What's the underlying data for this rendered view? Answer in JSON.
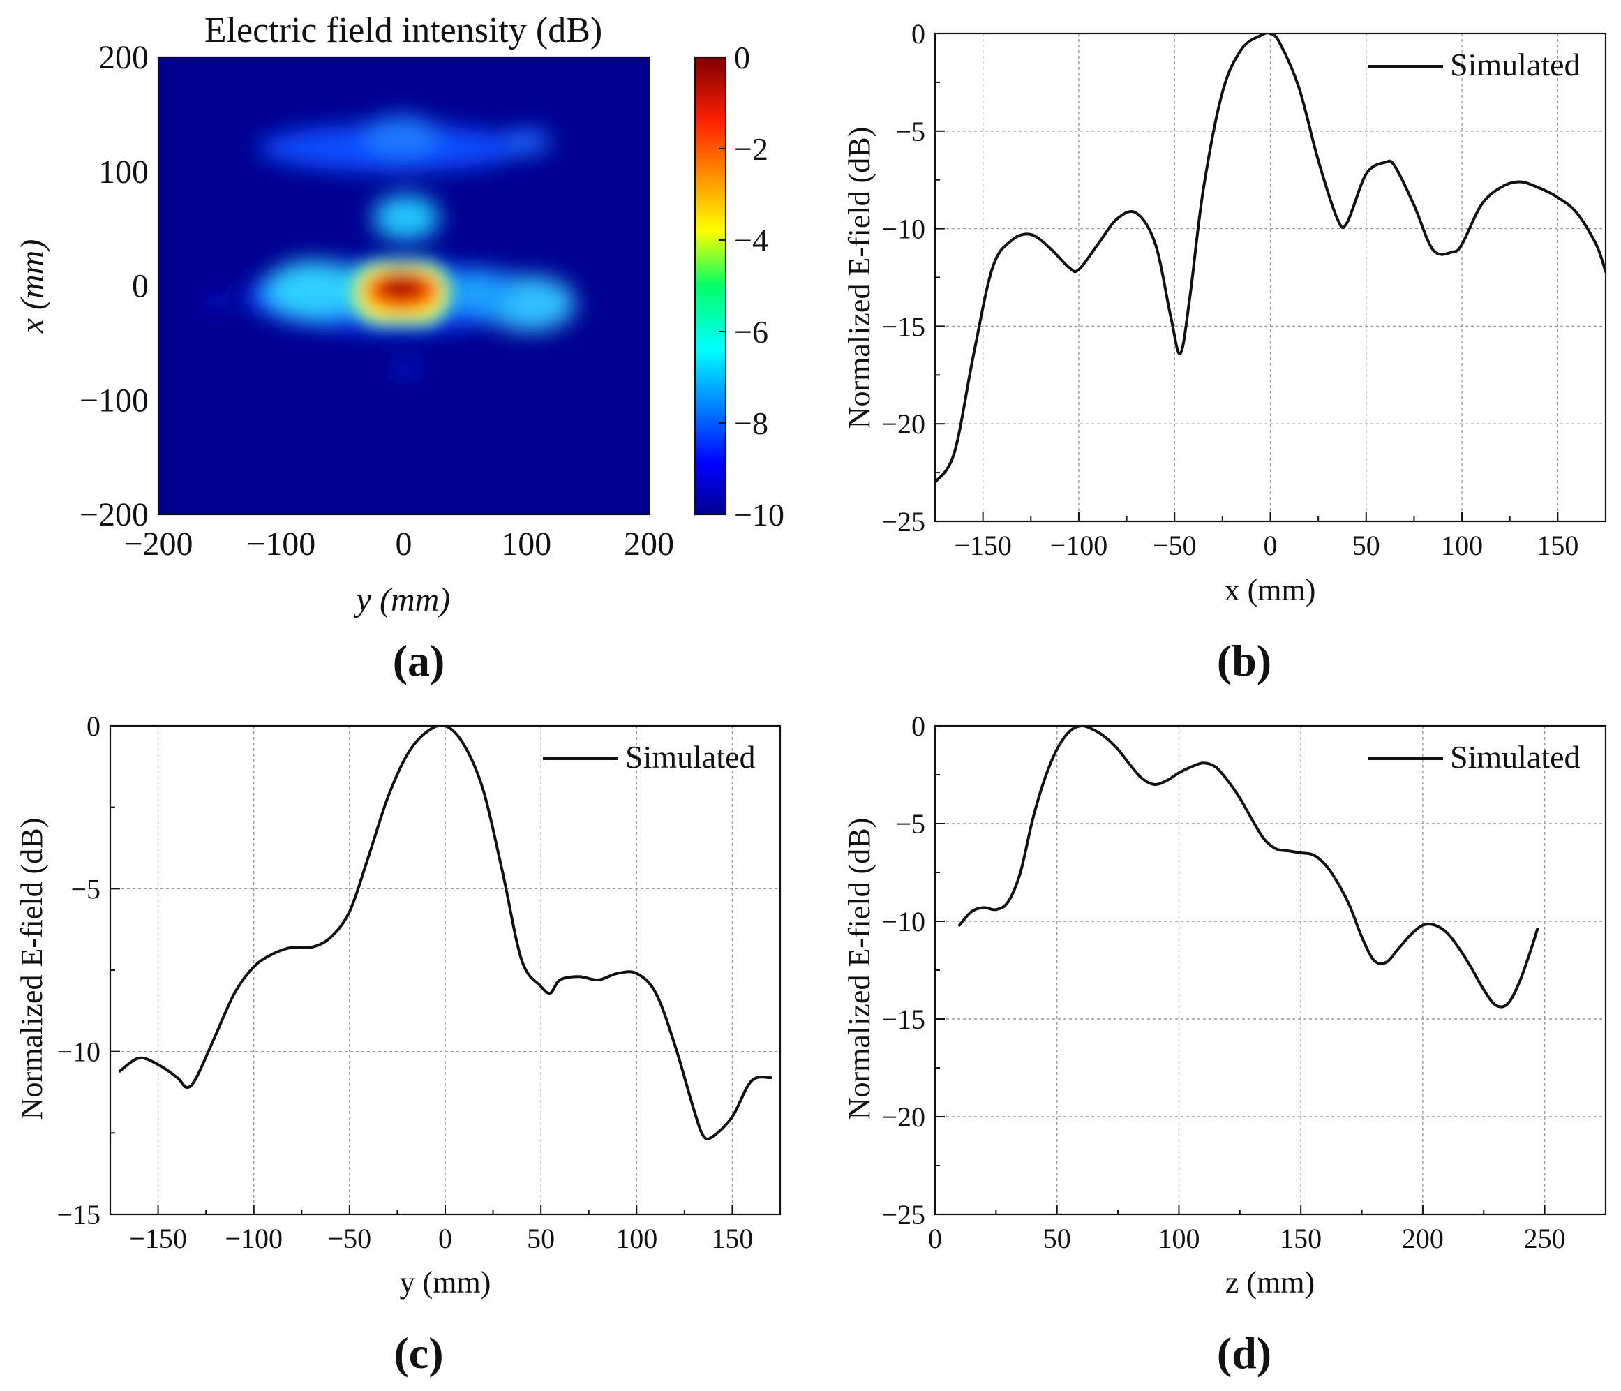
{
  "colors": {
    "line": "#111111",
    "grid": "#9a9a9a",
    "heatmap_background": "#00008f"
  },
  "icons": {
    "legend_swatch": "legend-line-icon",
    "colorbar": "jet-colorbar"
  },
  "chart_data": [
    {
      "panel": "a",
      "panel_label": "(a)",
      "type": "heatmap",
      "title": "Electric field intensity (dB)",
      "xlabel": "y (mm)",
      "ylabel": "x (mm)",
      "xlim": [
        -200,
        200
      ],
      "ylim": [
        -200,
        200
      ],
      "xticks": [
        -200,
        -100,
        0,
        100,
        200
      ],
      "yticks": [
        -200,
        -100,
        0,
        100,
        200
      ],
      "x_tick_labels": [
        "−200",
        "−100",
        "0",
        "100",
        "200"
      ],
      "y_tick_labels": [
        "−200",
        "−100",
        "0",
        "100",
        "200"
      ],
      "colorscale": "jet",
      "color_range": [
        -10,
        0
      ],
      "colorbar_ticks": [
        0,
        -2,
        -4,
        -6,
        -8,
        -10
      ],
      "colorbar_tick_labels": [
        "0",
        "−2",
        "−4",
        "−6",
        "−8",
        "−10"
      ],
      "regions": [
        {
          "y": 0,
          "x": 0,
          "peak_db": 0
        },
        {
          "y": -70,
          "x": -5,
          "peak_db": -6.5
        },
        {
          "y": 90,
          "x": -10,
          "peak_db": -6.5
        },
        {
          "y": -5,
          "x": 60,
          "peak_db": -6.3
        },
        {
          "y": 0,
          "x": 120,
          "peak_db": -7.3
        },
        {
          "y": 0,
          "x": -70,
          "peak_db": -9
        }
      ]
    },
    {
      "panel": "b",
      "panel_label": "(b)",
      "type": "line",
      "xlabel": "x (mm)",
      "ylabel": "Normalized E-field (dB)",
      "xlim": [
        -175,
        175
      ],
      "ylim": [
        -25,
        0
      ],
      "xticks": [
        -150,
        -100,
        -50,
        0,
        50,
        100,
        150
      ],
      "yticks": [
        0,
        -5,
        -10,
        -15,
        -20,
        -25
      ],
      "x_tick_labels": [
        "−150",
        "−100",
        "−50",
        "0",
        "50",
        "100",
        "150"
      ],
      "y_tick_labels": [
        "0",
        "−5",
        "−10",
        "−15",
        "−20",
        "−25"
      ],
      "legend_position": "top-right",
      "series": [
        {
          "name": "Simulated",
          "x": [
            -175,
            -165,
            -155,
            -145,
            -135,
            -125,
            -115,
            -105,
            -100,
            -90,
            -80,
            -70,
            -60,
            -52,
            -47,
            -42,
            -35,
            -25,
            -15,
            -5,
            0,
            5,
            15,
            25,
            35,
            40,
            50,
            60,
            65,
            75,
            85,
            95,
            100,
            110,
            120,
            130,
            140,
            150,
            160,
            170,
            175
          ],
          "y": [
            -23,
            -21.5,
            -16.5,
            -12,
            -10.6,
            -10.3,
            -11,
            -12,
            -12.1,
            -10.8,
            -9.5,
            -9.2,
            -10.8,
            -14.5,
            -16.4,
            -13.5,
            -8,
            -3,
            -0.8,
            -0.1,
            0,
            -0.5,
            -2.8,
            -6.5,
            -9.5,
            -9.7,
            -7.2,
            -6.6,
            -6.8,
            -8.8,
            -11.1,
            -11.2,
            -10.8,
            -8.8,
            -7.9,
            -7.6,
            -7.9,
            -8.4,
            -9.2,
            -10.8,
            -12.2
          ]
        }
      ]
    },
    {
      "panel": "c",
      "panel_label": "(c)",
      "type": "line",
      "xlabel": "y (mm)",
      "ylabel": "Normalized E-field (dB)",
      "xlim": [
        -175,
        175
      ],
      "ylim": [
        -15,
        0
      ],
      "xticks": [
        -150,
        -100,
        -50,
        0,
        50,
        100,
        150
      ],
      "yticks": [
        0,
        -5,
        -10,
        -15
      ],
      "x_tick_labels": [
        "−150",
        "−100",
        "−50",
        "0",
        "50",
        "100",
        "150"
      ],
      "y_tick_labels": [
        "0",
        "−5",
        "−10",
        "−15"
      ],
      "legend_position": "top-right",
      "series": [
        {
          "name": "Simulated",
          "x": [
            -170,
            -160,
            -150,
            -140,
            -135,
            -130,
            -120,
            -110,
            -100,
            -90,
            -80,
            -70,
            -60,
            -50,
            -40,
            -30,
            -20,
            -10,
            0,
            10,
            20,
            30,
            40,
            50,
            55,
            60,
            70,
            80,
            90,
            100,
            110,
            120,
            130,
            135,
            140,
            150,
            160,
            170
          ],
          "y": [
            -10.6,
            -10.2,
            -10.4,
            -10.8,
            -11.1,
            -10.8,
            -9.5,
            -8.2,
            -7.4,
            -7.0,
            -6.8,
            -6.8,
            -6.5,
            -5.7,
            -4.0,
            -2.2,
            -0.9,
            -0.2,
            0,
            -0.6,
            -2.0,
            -4.5,
            -7.2,
            -8.0,
            -8.2,
            -7.8,
            -7.7,
            -7.8,
            -7.6,
            -7.6,
            -8.2,
            -9.8,
            -11.8,
            -12.6,
            -12.6,
            -12.0,
            -10.9,
            -10.8
          ]
        }
      ]
    },
    {
      "panel": "d",
      "panel_label": "(d)",
      "type": "line",
      "xlabel": "z (mm)",
      "ylabel": "Normalized E-field (dB)",
      "xlim": [
        0,
        275
      ],
      "ylim": [
        -25,
        0
      ],
      "xticks": [
        0,
        50,
        100,
        150,
        200,
        250
      ],
      "yticks": [
        0,
        -5,
        -10,
        -15,
        -20,
        -25
      ],
      "x_tick_labels": [
        "0",
        "50",
        "100",
        "150",
        "200",
        "250"
      ],
      "y_tick_labels": [
        "0",
        "−5",
        "−10",
        "−15",
        "−20",
        "−25"
      ],
      "legend_position": "top-right",
      "series": [
        {
          "name": "Simulated",
          "x": [
            10,
            15,
            20,
            25,
            30,
            35,
            40,
            45,
            50,
            55,
            60,
            65,
            70,
            75,
            80,
            85,
            90,
            95,
            100,
            105,
            110,
            115,
            120,
            125,
            130,
            135,
            140,
            145,
            150,
            155,
            160,
            165,
            170,
            175,
            180,
            185,
            190,
            195,
            200,
            205,
            210,
            215,
            220,
            225,
            230,
            235,
            240,
            245,
            247
          ],
          "y": [
            -10.2,
            -9.5,
            -9.3,
            -9.4,
            -9.0,
            -7.5,
            -4.8,
            -2.7,
            -1.2,
            -0.3,
            0,
            -0.2,
            -0.6,
            -1.2,
            -2.0,
            -2.7,
            -3.0,
            -2.8,
            -2.4,
            -2.1,
            -1.9,
            -2.1,
            -2.8,
            -3.7,
            -4.8,
            -5.8,
            -6.3,
            -6.4,
            -6.5,
            -6.6,
            -7.1,
            -8.0,
            -9.2,
            -10.8,
            -12.0,
            -12.1,
            -11.4,
            -10.7,
            -10.2,
            -10.2,
            -10.6,
            -11.4,
            -12.4,
            -13.5,
            -14.3,
            -14.2,
            -13.0,
            -11.2,
            -10.4
          ]
        }
      ]
    }
  ]
}
